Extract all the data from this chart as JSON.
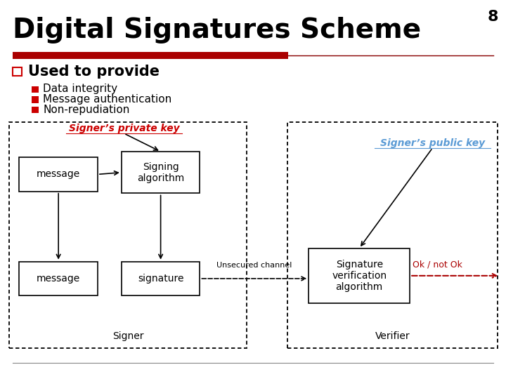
{
  "title": "Digital Signatures Scheme",
  "slide_number": "8",
  "bg_color": "#ffffff",
  "title_color": "#000000",
  "title_fontsize": 28,
  "red_bar_color": "#aa0000",
  "red_bar_thin_color": "#880000",
  "bullet_header": "Used to provide",
  "bullets": [
    "Data integrity",
    "Message authentication",
    "Non-repudiation"
  ],
  "bullet_color": "#000000",
  "bullet_sq_color": "#cc0000",
  "signer_label": "Signer",
  "verifier_label": "Verifier",
  "private_key_label": "Signer’s private key",
  "public_key_label": "Signer’s public key",
  "private_key_color": "#cc0000",
  "public_key_color": "#5b9bd5",
  "msg1_label": "message",
  "msg2_label": "message",
  "signing_label": "Signing\nalgorithm",
  "sig_label": "signature",
  "verif_label": "Signature\nverification\nalgorithm",
  "channel_label": "Unsecured channel",
  "ok_label": "Ok / not Ok",
  "ok_color": "#aa0000",
  "bottom_line_color": "#888888"
}
